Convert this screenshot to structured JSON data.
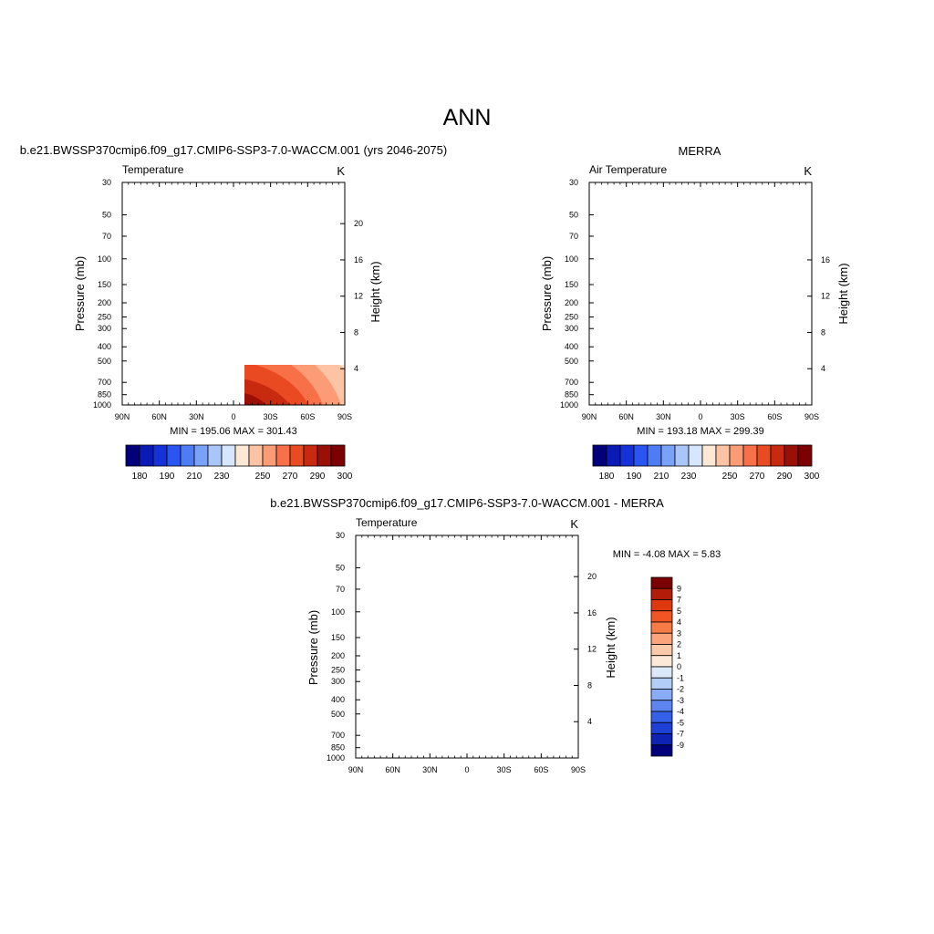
{
  "page_title": "ANN",
  "chart_data": [
    {
      "type": "heatmap",
      "panel_title": "b.e21.BWSSP370cmip6.f09_g17.CMIP6-SSP3-7.0-WACCM.001 (yrs 2046-2075)",
      "left_label": "Temperature",
      "units": "K",
      "ylabel": "Pressure (mb)",
      "ylabel_right": "Height (km)",
      "x_ticks": [
        "90N",
        "60N",
        "30N",
        "0",
        "30S",
        "60S",
        "90S"
      ],
      "y_ticks": [
        "30",
        "50",
        "70",
        "100",
        "150",
        "200",
        "250",
        "300",
        "400",
        "500",
        "700",
        "850",
        "1000"
      ],
      "height_ticks": [
        "20",
        "16",
        "12",
        "8",
        "4"
      ],
      "ylim_mb": [
        1000,
        30
      ],
      "data_top_mb": 30,
      "stats": "MIN = 195.06  MAX = 301.43",
      "min": 195.06,
      "max": 301.43,
      "colorbar_ticks": [
        "180",
        "190",
        "210",
        "230",
        "250",
        "270",
        "290",
        "300"
      ]
    },
    {
      "type": "heatmap",
      "panel_title": "MERRA",
      "left_label": "Air Temperature",
      "units": "K",
      "ylabel": "Pressure (mb)",
      "ylabel_right": "Height (km)",
      "x_ticks": [
        "90N",
        "60N",
        "30N",
        "0",
        "30S",
        "60S",
        "90S"
      ],
      "y_ticks": [
        "30",
        "50",
        "70",
        "100",
        "150",
        "200",
        "250",
        "300",
        "400",
        "500",
        "700",
        "850",
        "1000"
      ],
      "height_ticks": [
        "16",
        "12",
        "8",
        "4"
      ],
      "ylim_mb": [
        1000,
        30
      ],
      "data_top_mb": 100,
      "stats": "MIN = 193.18  MAX = 299.39",
      "min": 193.18,
      "max": 299.39,
      "colorbar_ticks": [
        "180",
        "190",
        "210",
        "230",
        "250",
        "270",
        "290",
        "300"
      ]
    },
    {
      "type": "heatmap",
      "panel_title": "b.e21.BWSSP370cmip6.f09_g17.CMIP6-SSP3-7.0-WACCM.001 - MERRA",
      "left_label": "Temperature",
      "units": "K",
      "ylabel": "Pressure (mb)",
      "ylabel_right": "Height (km)",
      "x_ticks": [
        "90N",
        "60N",
        "30N",
        "0",
        "30S",
        "60S",
        "90S"
      ],
      "y_ticks": [
        "30",
        "50",
        "70",
        "100",
        "150",
        "200",
        "250",
        "300",
        "400",
        "500",
        "700",
        "850",
        "1000"
      ],
      "height_ticks": [
        "20",
        "16",
        "12",
        "8",
        "4"
      ],
      "ylim_mb": [
        1000,
        30
      ],
      "data_top_mb": 100,
      "stats": "MIN =  -4.08  MAX =   5.83",
      "min": -4.08,
      "max": 5.83,
      "colorbar_ticks": [
        "9",
        "7",
        "5",
        "4",
        "3",
        "2",
        "1",
        "0",
        "-1",
        "-2",
        "-3",
        "-4",
        "-5",
        "-7",
        "-9"
      ]
    }
  ],
  "colorbars": {
    "temperature_colors": [
      "#00007d",
      "#0a1ab5",
      "#1532d8",
      "#2a55f0",
      "#4d7cf6",
      "#7aa2f8",
      "#a9c6fa",
      "#d6e6fc",
      "#fde8d6",
      "#fcc4a4",
      "#fb9c76",
      "#f77048",
      "#ea4a22",
      "#c82a10",
      "#9a1006",
      "#7d0000"
    ],
    "difference_colors": [
      "#7d0000",
      "#b21c08",
      "#e0380e",
      "#f25424",
      "#f77b46",
      "#fba47c",
      "#fdc9a8",
      "#fde9d8",
      "#dbe9fb",
      "#b3cdf9",
      "#88acf6",
      "#5c85f1",
      "#3560ea",
      "#1e40d6",
      "#0e22b4",
      "#00007d"
    ]
  }
}
